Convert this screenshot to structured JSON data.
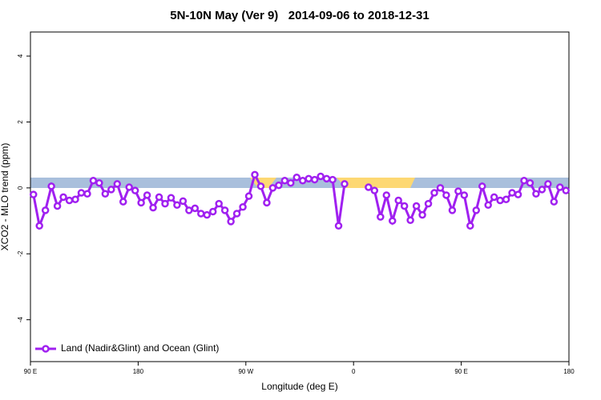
{
  "chart_data": {
    "type": "line",
    "title": "5N-10N May (Ver 9)   2014-09-06 to 2018-12-31",
    "xlabel": "Longitude (deg E)",
    "ylabel": "XCO2 - MLO trend (ppm)",
    "xlim": [
      90,
      540
    ],
    "xticks": [
      {
        "value": 90,
        "label": "90 E"
      },
      180,
      {
        "value": 270,
        "label": "90 W"
      },
      {
        "value": 360,
        "label": "0"
      },
      {
        "value": 450,
        "label": "90 E"
      },
      {
        "value": 540,
        "label": "180"
      }
    ],
    "ylim": [
      -5.27,
      4.73
    ],
    "yticks": [
      -4,
      -2,
      0,
      2,
      4
    ],
    "legend": "bottom-left",
    "x": [
      92.5,
      97.5,
      102.5,
      107.5,
      112.5,
      117.5,
      122.5,
      127.5,
      132.5,
      137.5,
      142.5,
      147.5,
      152.5,
      157.5,
      162.5,
      167.5,
      172.5,
      177.5,
      182.5,
      187.5,
      192.5,
      197.5,
      202.5,
      207.5,
      212.5,
      217.5,
      222.5,
      227.5,
      232.5,
      237.5,
      242.5,
      247.5,
      252.5,
      257.5,
      262.5,
      267.5,
      272.5,
      277.5,
      282.5,
      287.5,
      292.5,
      297.5,
      302.5,
      307.5,
      312.5,
      317.5,
      322.5,
      327.5,
      332.5,
      337.5,
      342.5,
      347.5,
      352.5,
      357.5,
      362.5,
      367.5,
      372.5,
      377.5,
      382.5,
      387.5,
      392.5,
      397.5,
      402.5,
      407.5,
      412.5,
      417.5,
      422.5,
      427.5,
      432.5,
      437.5,
      442.5,
      447.5,
      452.5,
      457.5,
      462.5,
      467.5,
      472.5,
      477.5,
      482.5,
      487.5,
      492.5,
      497.5,
      502.5,
      507.5,
      512.5,
      517.5,
      522.5,
      527.5,
      532.5,
      537.5
    ],
    "series": [
      {
        "name": "Land (Nadir&Glint) and Ocean (Glint)",
        "color": "#a020f0",
        "values": [
          -0.2,
          -1.15,
          -0.68,
          0.05,
          -0.55,
          -0.28,
          -0.38,
          -0.35,
          -0.15,
          -0.18,
          0.22,
          0.15,
          -0.18,
          -0.05,
          0.12,
          -0.42,
          0.02,
          -0.08,
          -0.45,
          -0.22,
          -0.6,
          -0.28,
          -0.48,
          -0.3,
          -0.52,
          -0.4,
          -0.68,
          -0.62,
          -0.78,
          -0.82,
          -0.72,
          -0.48,
          -0.68,
          -1.02,
          -0.78,
          -0.58,
          -0.25,
          0.4,
          0.05,
          -0.45,
          0.0,
          0.08,
          0.22,
          0.15,
          0.32,
          0.22,
          0.28,
          0.25,
          0.35,
          0.28,
          0.25,
          -1.15,
          0.12,
          null,
          null,
          null,
          0.02,
          -0.08,
          -0.88,
          -0.22,
          -1.0,
          -0.38,
          -0.55,
          -0.98,
          -0.55,
          -0.82,
          -0.48,
          -0.15,
          0.0,
          -0.22,
          -0.68,
          -0.1,
          -0.22,
          -1.15,
          -0.68,
          0.05,
          -0.52,
          -0.28,
          -0.38,
          -0.35,
          -0.15,
          -0.2,
          0.22,
          0.15,
          -0.18,
          -0.05,
          0.12,
          -0.42,
          0.02,
          -0.08
        ]
      }
    ]
  }
}
